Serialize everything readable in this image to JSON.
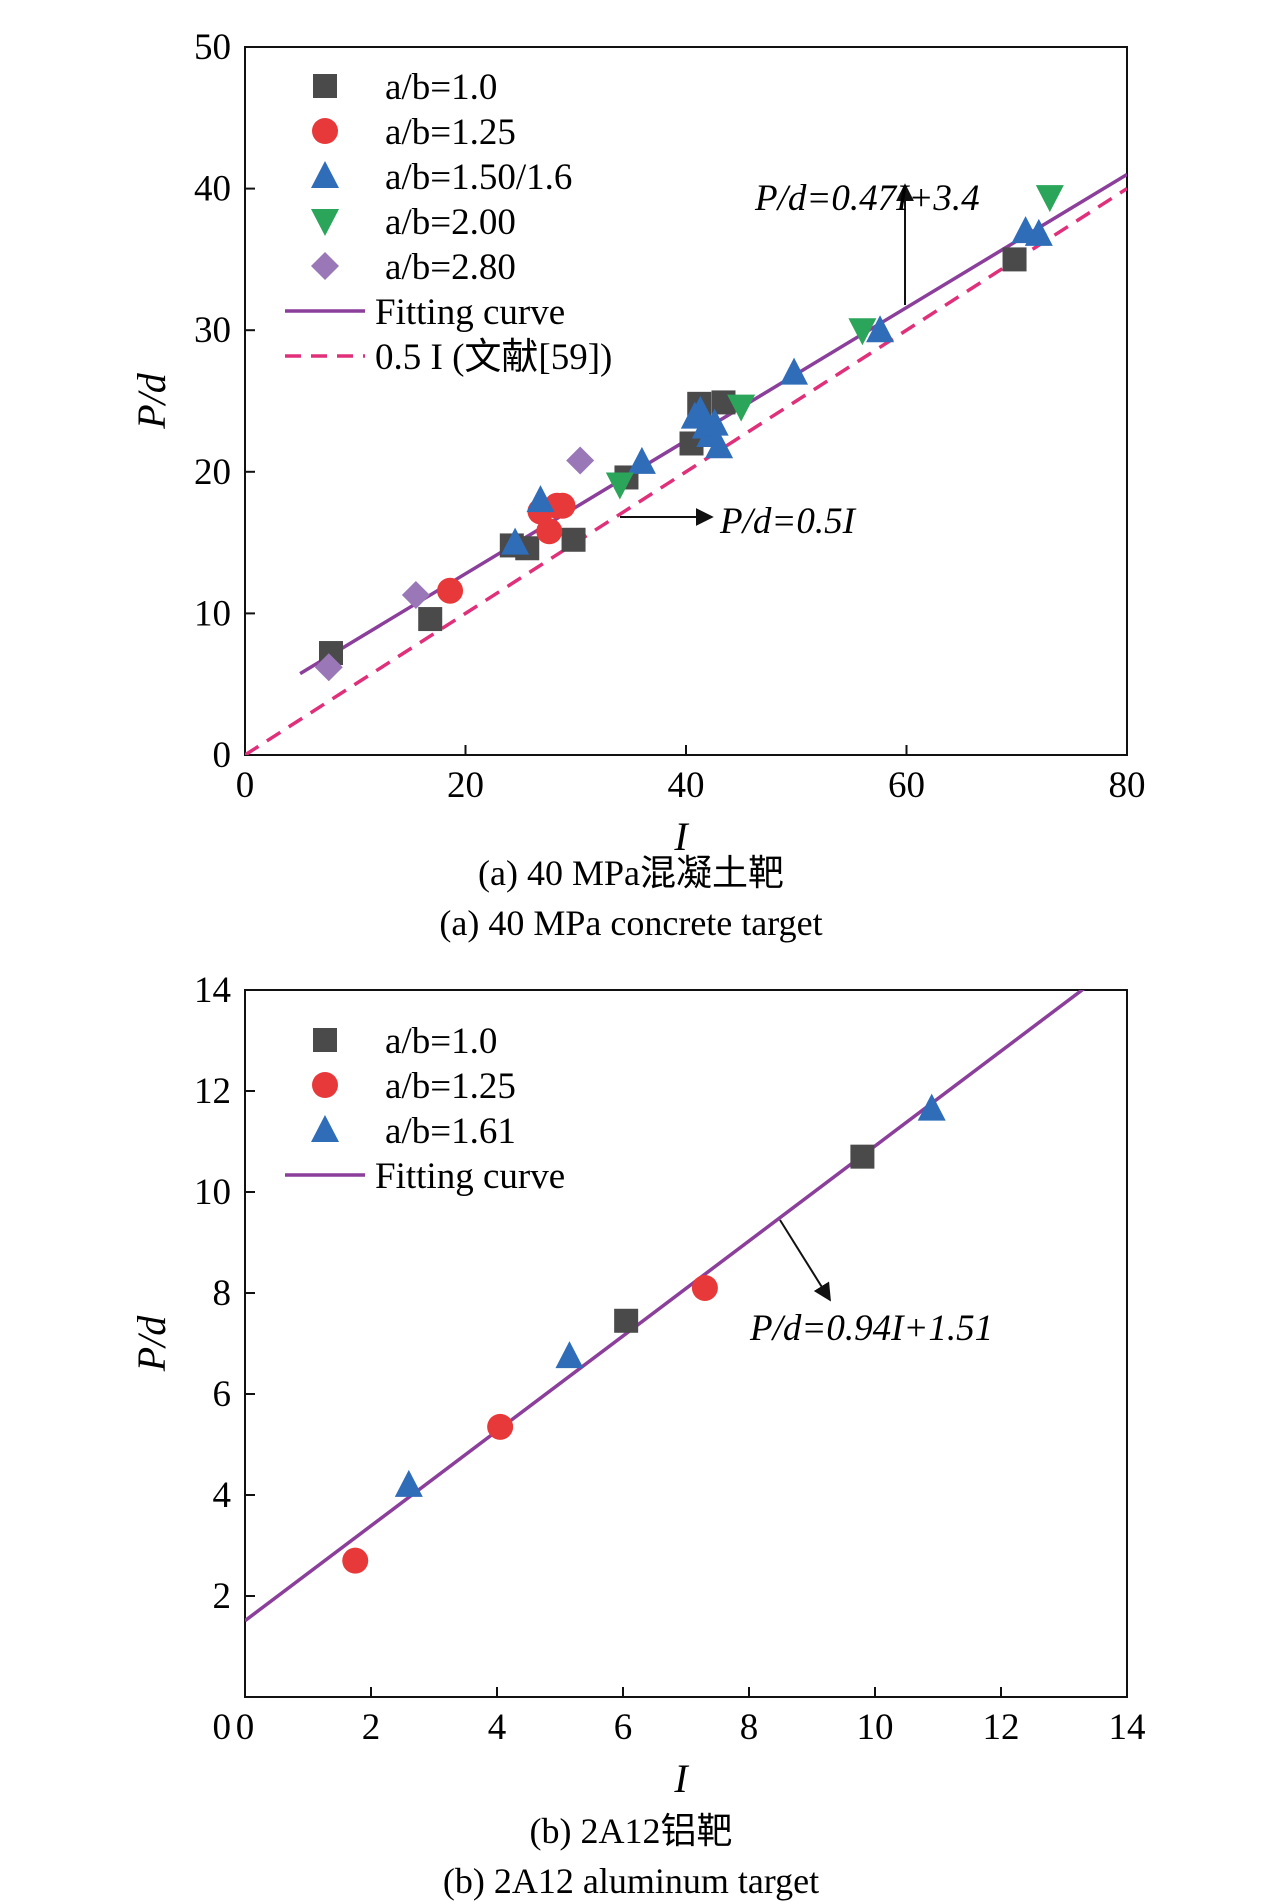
{
  "chart_data": [
    {
      "type": "scatter",
      "xlabel": "I",
      "ylabel": "P/d",
      "xlim": [
        0,
        80
      ],
      "ylim": [
        0,
        50
      ],
      "xticks": [
        "0",
        "20",
        "40",
        "60",
        "80"
      ],
      "yticks": [
        "0",
        "10",
        "20",
        "30",
        "40",
        "50"
      ],
      "legend_position": "top-left",
      "caption_cn": "(a) 40 MPa混凝土靶",
      "caption_en": "(a) 40 MPa concrete target",
      "series": [
        {
          "name": "a/b=1.0",
          "marker": "square",
          "color": "#4a4a4a",
          "x": [
            7.8,
            16.8,
            24.2,
            25.6,
            29.8,
            34.6,
            40.5,
            41.2,
            43.4,
            69.8
          ],
          "y": [
            7.2,
            9.6,
            14.8,
            14.6,
            15.2,
            19.6,
            22.0,
            24.8,
            24.9,
            35.0
          ]
        },
        {
          "name": "a/b=1.25",
          "marker": "circle",
          "color": "#e8393a",
          "x": [
            18.6,
            26.8,
            27.6,
            28.3,
            28.8
          ],
          "y": [
            11.6,
            17.2,
            15.8,
            17.6,
            17.6
          ]
        },
        {
          "name": "a/b=1.50/1.6",
          "marker": "triangle-up",
          "color": "#2f6db8",
          "x": [
            24.5,
            26.8,
            36.0,
            40.8,
            41.3,
            41.8,
            42.2,
            42.6,
            43.0,
            49.8,
            57.6,
            70.8,
            72.0
          ],
          "y": [
            15.0,
            18.0,
            20.7,
            23.9,
            24.3,
            23.2,
            22.6,
            23.4,
            21.8,
            27.0,
            30.0,
            37.0,
            36.8
          ]
        },
        {
          "name": "a/b=2.00",
          "marker": "triangle-down",
          "color": "#2aa55a",
          "x": [
            34.0,
            45.0,
            56.0,
            73.0
          ],
          "y": [
            19.1,
            24.6,
            30.0,
            39.4
          ]
        },
        {
          "name": "a/b=2.80",
          "marker": "diamond",
          "color": "#9a78b8",
          "x": [
            7.6,
            15.5,
            30.4
          ],
          "y": [
            6.2,
            11.3,
            20.8
          ]
        }
      ],
      "lines": [
        {
          "name": "Fitting curve",
          "style": "solid",
          "color": "#8b3f9b",
          "slope": 0.47,
          "intercept": 3.4,
          "x_range": [
            5,
            80
          ]
        },
        {
          "name": "0.5 I (文献[59])",
          "style": "dashed",
          "color": "#e0307a",
          "slope": 0.5,
          "intercept": 0,
          "x_range": [
            0,
            80
          ]
        }
      ],
      "annotations": [
        {
          "text": "P/d=0.47I+3.4",
          "arrow": "up"
        },
        {
          "text": "P/d=0.5I",
          "arrow": "right"
        }
      ]
    },
    {
      "type": "scatter",
      "xlabel": "I",
      "ylabel": "P/d",
      "xlim": [
        0,
        14
      ],
      "ylim": [
        0,
        14
      ],
      "xticks": [
        "0",
        "2",
        "4",
        "6",
        "8",
        "10",
        "12",
        "14"
      ],
      "yticks": [
        "2",
        "4",
        "6",
        "8",
        "10",
        "12",
        "14"
      ],
      "legend_position": "top-left",
      "caption_cn": "(b) 2A12铝靶",
      "caption_en": "(b) 2A12 aluminum target",
      "series": [
        {
          "name": "a/b=1.0",
          "marker": "square",
          "color": "#4a4a4a",
          "x": [
            6.05,
            9.8
          ],
          "y": [
            7.45,
            10.7
          ]
        },
        {
          "name": "a/b=1.25",
          "marker": "circle",
          "color": "#e8393a",
          "x": [
            1.75,
            4.05,
            7.3
          ],
          "y": [
            2.7,
            5.35,
            8.1
          ]
        },
        {
          "name": "a/b=1.61",
          "marker": "triangle-up",
          "color": "#2f6db8",
          "x": [
            2.6,
            5.15,
            10.9
          ],
          "y": [
            4.2,
            6.75,
            11.65
          ]
        }
      ],
      "lines": [
        {
          "name": "Fitting curve",
          "style": "solid",
          "color": "#8b3f9b",
          "slope": 0.94,
          "intercept": 1.51,
          "x_range": [
            0,
            14
          ]
        }
      ],
      "annotations": [
        {
          "text": "P/d=0.94I+1.51",
          "arrow": "down-right"
        }
      ]
    }
  ]
}
